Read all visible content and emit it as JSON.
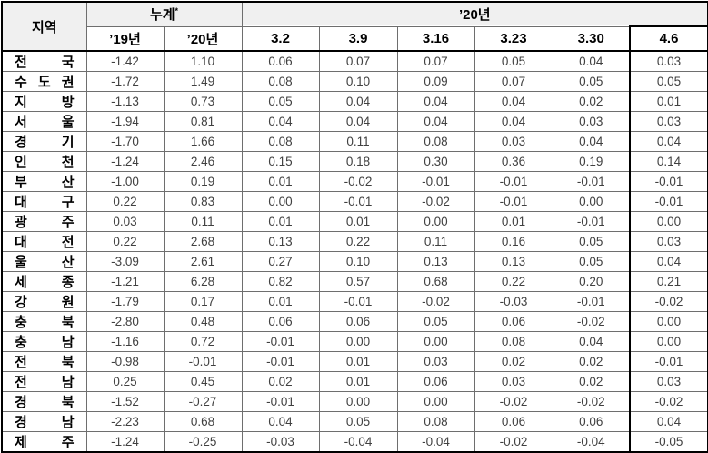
{
  "colors": {
    "header_background": "#f0f0f0",
    "grid_line": "#6e6e6e",
    "outer_border": "#000000",
    "number_text": "#404040",
    "header_text": "#000000"
  },
  "chart_data": {
    "type": "table",
    "header": {
      "region": "지역",
      "cumulative_label": "누계",
      "cumulative_superscript": "*",
      "cumulative_columns": [
        "’19년",
        "’20년"
      ],
      "year2020_label": "’20년",
      "week_columns": [
        "3.2",
        "3.9",
        "3.16",
        "3.23",
        "3.30",
        "4.6"
      ]
    },
    "rows": [
      {
        "region": "전 국",
        "values": [
          "-1.42",
          "1.10",
          "0.06",
          "0.07",
          "0.07",
          "0.05",
          "0.04",
          "0.03"
        ]
      },
      {
        "region": "수도권",
        "values": [
          "-1.72",
          "1.49",
          "0.08",
          "0.10",
          "0.09",
          "0.07",
          "0.05",
          "0.05"
        ]
      },
      {
        "region": "지 방",
        "values": [
          "-1.13",
          "0.73",
          "0.05",
          "0.04",
          "0.04",
          "0.04",
          "0.02",
          "0.01"
        ]
      },
      {
        "region": "서 울",
        "values": [
          "-1.94",
          "0.81",
          "0.04",
          "0.04",
          "0.04",
          "0.04",
          "0.03",
          "0.03"
        ]
      },
      {
        "region": "경 기",
        "values": [
          "-1.70",
          "1.66",
          "0.08",
          "0.11",
          "0.08",
          "0.03",
          "0.04",
          "0.04"
        ]
      },
      {
        "region": "인 천",
        "values": [
          "-1.24",
          "2.46",
          "0.15",
          "0.18",
          "0.30",
          "0.36",
          "0.19",
          "0.14"
        ]
      },
      {
        "region": "부 산",
        "values": [
          "-1.00",
          "0.19",
          "0.01",
          "-0.02",
          "-0.01",
          "-0.01",
          "-0.01",
          "-0.01"
        ]
      },
      {
        "region": "대 구",
        "values": [
          "0.22",
          "0.83",
          "0.00",
          "-0.01",
          "-0.02",
          "-0.01",
          "0.00",
          "-0.01"
        ]
      },
      {
        "region": "광 주",
        "values": [
          "0.03",
          "0.11",
          "0.01",
          "0.01",
          "0.00",
          "0.01",
          "-0.01",
          "0.00"
        ]
      },
      {
        "region": "대 전",
        "values": [
          "0.22",
          "2.68",
          "0.13",
          "0.22",
          "0.11",
          "0.16",
          "0.05",
          "0.03"
        ]
      },
      {
        "region": "울 산",
        "values": [
          "-3.09",
          "2.61",
          "0.27",
          "0.10",
          "0.13",
          "0.13",
          "0.05",
          "0.04"
        ]
      },
      {
        "region": "세 종",
        "values": [
          "-1.21",
          "6.28",
          "0.82",
          "0.57",
          "0.68",
          "0.22",
          "0.20",
          "0.21"
        ]
      },
      {
        "region": "강 원",
        "values": [
          "-1.79",
          "0.17",
          "0.01",
          "-0.01",
          "-0.02",
          "-0.03",
          "-0.01",
          "-0.02"
        ]
      },
      {
        "region": "충 북",
        "values": [
          "-2.80",
          "0.48",
          "0.06",
          "0.06",
          "0.05",
          "0.06",
          "-0.02",
          "0.00"
        ]
      },
      {
        "region": "충 남",
        "values": [
          "-1.16",
          "0.72",
          "-0.01",
          "0.00",
          "0.00",
          "0.08",
          "0.04",
          "0.00"
        ]
      },
      {
        "region": "전 북",
        "values": [
          "-0.98",
          "-0.01",
          "-0.01",
          "0.01",
          "0.03",
          "0.02",
          "0.02",
          "-0.01"
        ]
      },
      {
        "region": "전 남",
        "values": [
          "0.25",
          "0.45",
          "0.02",
          "0.01",
          "0.06",
          "0.03",
          "0.02",
          "0.03"
        ]
      },
      {
        "region": "경 북",
        "values": [
          "-1.52",
          "-0.27",
          "-0.01",
          "0.00",
          "0.00",
          "-0.02",
          "-0.02",
          "-0.02"
        ]
      },
      {
        "region": "경 남",
        "values": [
          "-2.23",
          "0.68",
          "0.04",
          "0.05",
          "0.08",
          "0.06",
          "0.06",
          "0.04"
        ]
      },
      {
        "region": "제 주",
        "values": [
          "-1.24",
          "-0.25",
          "-0.03",
          "-0.04",
          "-0.04",
          "-0.02",
          "-0.04",
          "-0.05"
        ]
      }
    ]
  }
}
